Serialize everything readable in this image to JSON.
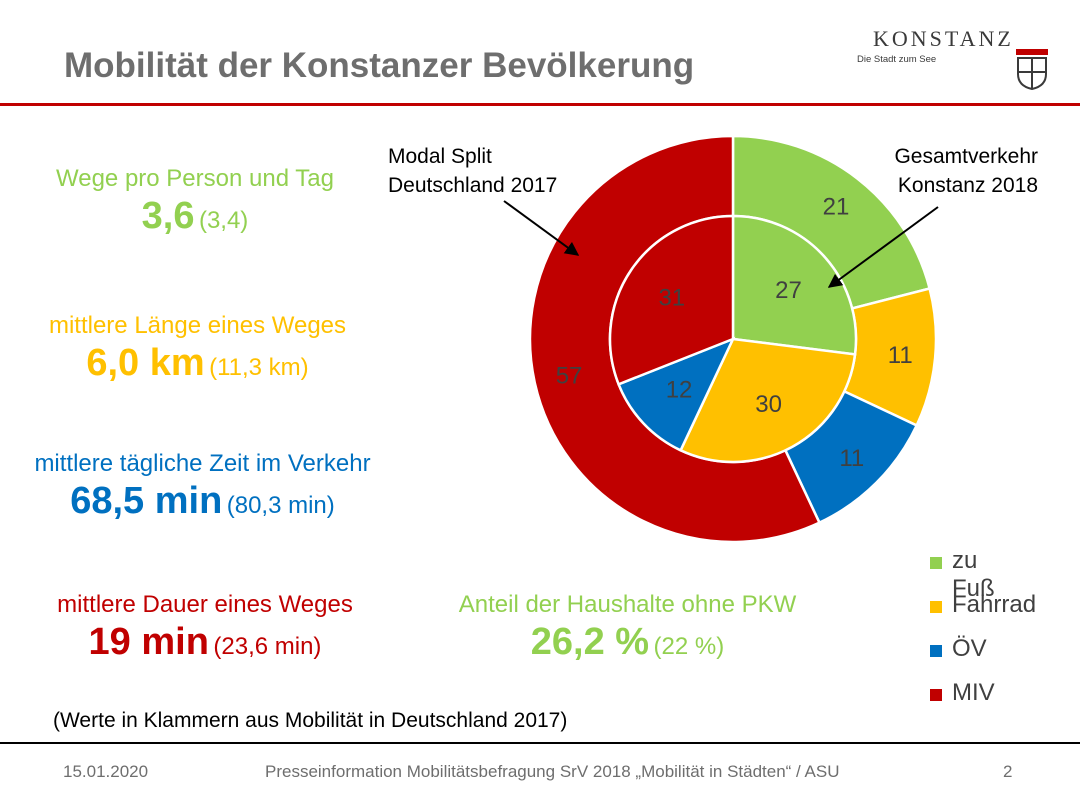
{
  "header": {
    "title": "Mobilität der Konstanzer Bevölkerung",
    "logo_name": "KONSTANZ",
    "logo_tagline": "Die Stadt zum See"
  },
  "stats": [
    {
      "label": "Wege pro Person und Tag",
      "value": "3,6",
      "compare": "(3,4)",
      "color": "#92d050"
    },
    {
      "label": "mittlere Länge eines Weges",
      "value": "6,0 km",
      "compare": "(11,3 km)",
      "color": "#ffc000"
    },
    {
      "label": "mittlere tägliche Zeit im Verkehr",
      "value": "68,5 min",
      "compare": "(80,3 min)",
      "color": "#0070c0"
    },
    {
      "label": "mittlere Dauer eines Weges",
      "value": "19 min",
      "compare": "(23,6 min)",
      "color": "#c00000"
    },
    {
      "label": "Anteil der Haushalte ohne PKW",
      "value": "26,2 %",
      "compare": "(22 %)",
      "color": "#92d050"
    }
  ],
  "note": "(Werte in Klammern aus Mobilität in Deutschland 2017)",
  "footer": {
    "date": "15.01.2020",
    "center": "Presseinformation Mobilitätsbefragung SrV 2018 „Mobilität in Städten“ / ASU",
    "page": "2"
  },
  "chart_data": {
    "type": "pie",
    "subtype": "nested-donut",
    "categories": [
      "zu Fuß",
      "Fahrrad",
      "ÖV",
      "MIV"
    ],
    "colors": [
      "#92d050",
      "#ffc000",
      "#0070c0",
      "#c00000"
    ],
    "series": [
      {
        "name": "Modal Split Deutschland 2017",
        "ring": "outer",
        "values": [
          21,
          11,
          11,
          57
        ]
      },
      {
        "name": "Gesamtverkehr Konstanz 2018",
        "ring": "inner",
        "values": [
          27,
          30,
          12,
          31
        ]
      }
    ],
    "annotations": [
      {
        "line1": "Modal Split",
        "line2": "Deutschland 2017"
      },
      {
        "line1": "Gesamtverkehr",
        "line2": "Konstanz 2018"
      }
    ],
    "legend_position": "bottom-right"
  }
}
